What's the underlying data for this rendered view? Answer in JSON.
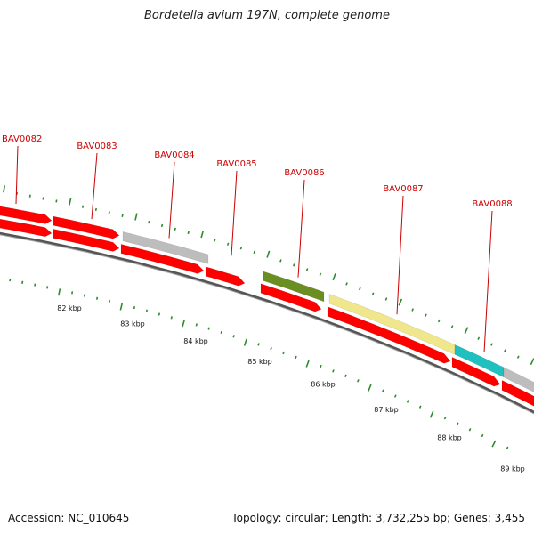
{
  "title": "Bordetella avium 197N, complete genome",
  "accession_text": "Accession: NC_010645",
  "summary_text": "Topology: circular; Length: 3,732,255 bp; Genes: 3,455",
  "colors": {
    "gene_forward": "#ff0000",
    "gene_grey": "#bdbdbd",
    "gene_olive": "#6b8e23",
    "gene_khaki": "#f0e68c",
    "gene_cyan": "#20c0c0",
    "backbone": "#777777",
    "tick": "#2e8b2e",
    "label": "#cc0000"
  },
  "genes": [
    {
      "name": "BAV0082"
    },
    {
      "name": "BAV0083"
    },
    {
      "name": "BAV0084"
    },
    {
      "name": "BAV0085"
    },
    {
      "name": "BAV0086"
    },
    {
      "name": "BAV0087"
    },
    {
      "name": "BAV0088"
    }
  ],
  "scale_labels": [
    "82 kbp",
    "83 kbp",
    "84 kbp",
    "85 kbp",
    "86 kbp",
    "87 kbp",
    "88 kbp",
    "89 kbp"
  ]
}
